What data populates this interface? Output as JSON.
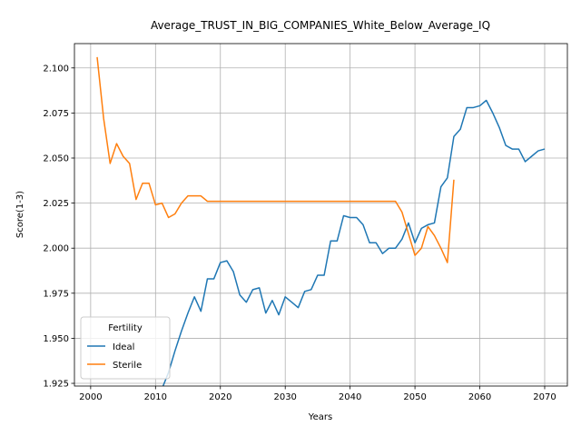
{
  "chart_data": {
    "type": "line",
    "title": "Average_TRUST_IN_BIG_COMPANIES_White_Below_Average_IQ",
    "xlabel": "Years",
    "ylabel": "Score(1-3)",
    "xlim": [
      1997.5,
      2073.5
    ],
    "ylim": [
      1.9235,
      2.1135
    ],
    "xticks": [
      2000,
      2010,
      2020,
      2030,
      2040,
      2050,
      2060,
      2070
    ],
    "yticks": [
      1.925,
      1.95,
      1.975,
      2.0,
      2.025,
      2.05,
      2.075,
      2.1
    ],
    "ytick_labels": [
      "1.925",
      "1.950",
      "1.975",
      "2.000",
      "2.025",
      "2.050",
      "2.075",
      "2.100"
    ],
    "grid": true,
    "legend": {
      "title": "Fertility",
      "placement": "lower-left"
    },
    "series": [
      {
        "name": "Ideal",
        "color": "#1f77b4",
        "x": [
          2011,
          2012,
          2013,
          2014,
          2015,
          2016,
          2017,
          2018,
          2019,
          2020,
          2021,
          2022,
          2023,
          2024,
          2025,
          2026,
          2027,
          2028,
          2029,
          2030,
          2031,
          2032,
          2033,
          2034,
          2035,
          2036,
          2037,
          2038,
          2039,
          2040,
          2041,
          2042,
          2043,
          2044,
          2045,
          2046,
          2047,
          2048,
          2049,
          2050,
          2051,
          2052,
          2053,
          2054,
          2055,
          2056,
          2057,
          2058,
          2059,
          2060,
          2061,
          2062,
          2063,
          2064,
          2065,
          2066,
          2067,
          2068,
          2069,
          2070
        ],
        "y": [
          1.922,
          1.931,
          1.943,
          1.954,
          1.964,
          1.973,
          1.965,
          1.983,
          1.983,
          1.992,
          1.993,
          1.987,
          1.974,
          1.97,
          1.977,
          1.978,
          1.964,
          1.971,
          1.963,
          1.973,
          1.97,
          1.967,
          1.976,
          1.977,
          1.985,
          1.985,
          2.004,
          2.004,
          2.018,
          2.017,
          2.017,
          2.013,
          2.003,
          2.003,
          1.997,
          2.0,
          2.0,
          2.005,
          2.014,
          2.003,
          2.011,
          2.013,
          2.014,
          2.034,
          2.039,
          2.062,
          2.066,
          2.078,
          2.078,
          2.079,
          2.082,
          2.075,
          2.067,
          2.057,
          2.055,
          2.055,
          2.048,
          2.051,
          2.054,
          2.055
        ]
      },
      {
        "name": "Sterile",
        "color": "#ff7f0e",
        "x": [
          2001,
          2002,
          2003,
          2004,
          2005,
          2006,
          2007,
          2008,
          2009,
          2010,
          2011,
          2012,
          2013,
          2014,
          2015,
          2016,
          2017,
          2018,
          2019,
          2020,
          2021,
          2022,
          2023,
          2024,
          2025,
          2026,
          2027,
          2028,
          2029,
          2030,
          2031,
          2032,
          2033,
          2034,
          2035,
          2036,
          2037,
          2038,
          2039,
          2040,
          2041,
          2042,
          2043,
          2044,
          2045,
          2046,
          2047,
          2048,
          2049,
          2050,
          2051,
          2052,
          2053,
          2054,
          2055,
          2056
        ],
        "y": [
          2.106,
          2.072,
          2.047,
          2.058,
          2.051,
          2.047,
          2.027,
          2.036,
          2.036,
          2.024,
          2.025,
          2.017,
          2.019,
          2.025,
          2.029,
          2.029,
          2.029,
          2.026,
          2.026,
          2.026,
          2.026,
          2.026,
          2.026,
          2.026,
          2.026,
          2.026,
          2.026,
          2.026,
          2.026,
          2.026,
          2.026,
          2.026,
          2.026,
          2.026,
          2.026,
          2.026,
          2.026,
          2.026,
          2.026,
          2.026,
          2.026,
          2.026,
          2.026,
          2.026,
          2.026,
          2.026,
          2.026,
          2.02,
          2.008,
          1.996,
          2.0,
          2.012,
          2.007,
          2.0,
          1.992,
          2.038
        ]
      }
    ]
  }
}
